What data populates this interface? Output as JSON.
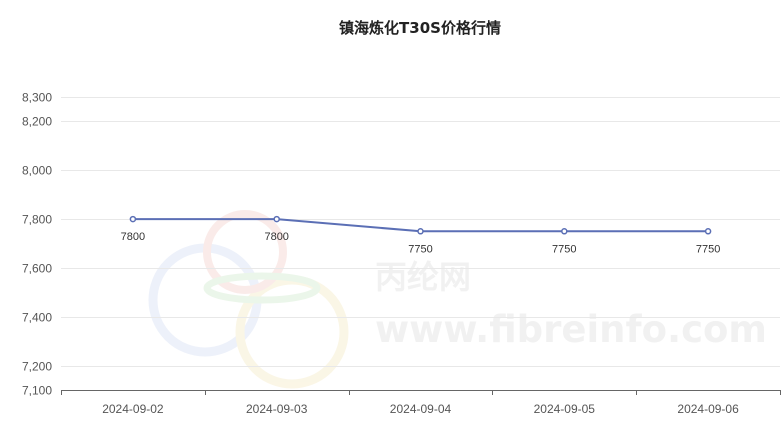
{
  "chart_data": {
    "type": "line",
    "title": "镇海炼化T30S价格行情",
    "categories": [
      "2024-09-02",
      "2024-09-03",
      "2024-09-04",
      "2024-09-05",
      "2024-09-06"
    ],
    "series": [
      {
        "values": [
          7800,
          7800,
          7750,
          7750,
          7750
        ],
        "color": "#5b6fb5"
      }
    ],
    "data_labels": [
      "7800",
      "7800",
      "7750",
      "7750",
      "7750"
    ],
    "y_ticks": [
      {
        "value": 8300,
        "label": "8,300"
      },
      {
        "value": 8200,
        "label": "8,200"
      },
      {
        "value": 8000,
        "label": "8,000"
      },
      {
        "value": 7800,
        "label": "7,800"
      },
      {
        "value": 7600,
        "label": "7,600"
      },
      {
        "value": 7400,
        "label": "7,400"
      },
      {
        "value": 7200,
        "label": "7,200"
      },
      {
        "value": 7100,
        "label": "7,100"
      }
    ],
    "ylim": [
      7100,
      8300
    ],
    "grid": true,
    "watermark": {
      "brand": "丙纶网",
      "url": "www.fibreinfo.com"
    }
  }
}
